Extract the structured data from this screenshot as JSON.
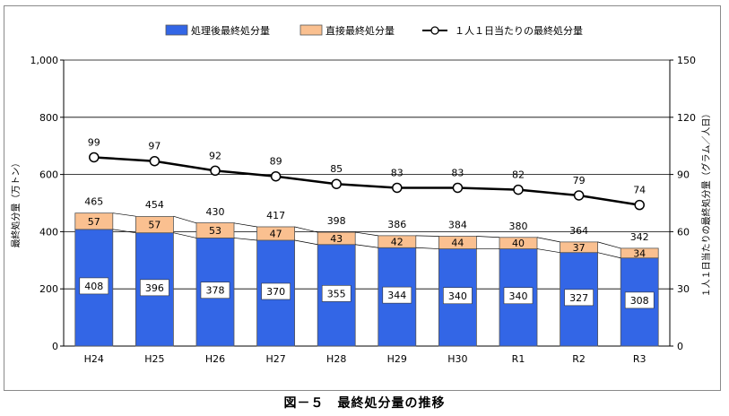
{
  "caption": "図－５　最終処分量の推移",
  "chart_data": {
    "type": "bar",
    "stacked": true,
    "categories": [
      "H24",
      "H25",
      "H26",
      "H27",
      "H28",
      "H29",
      "H30",
      "R1",
      "R2",
      "R3"
    ],
    "series": [
      {
        "name": "処理後最終処分量",
        "type": "bar",
        "axis": "left",
        "color": "#3366e6",
        "values": [
          408,
          396,
          378,
          370,
          355,
          344,
          340,
          340,
          327,
          308
        ]
      },
      {
        "name": "直接最終処分量",
        "type": "bar",
        "axis": "left",
        "color": "#fac090",
        "values": [
          57,
          57,
          53,
          47,
          43,
          42,
          44,
          40,
          37,
          34
        ]
      },
      {
        "name": "１人１日当たりの最終処分量",
        "type": "line",
        "axis": "right",
        "color": "#000000",
        "values": [
          99,
          97,
          92,
          89,
          85,
          83,
          83,
          82,
          79,
          74
        ]
      }
    ],
    "totals": [
      465,
      454,
      430,
      417,
      398,
      386,
      384,
      380,
      364,
      342
    ],
    "ylabel_left": "最終処分量（万トン）",
    "ylabel_right": "１人１日当たりの最終処分量（グラム／人日）",
    "ylim_left": [
      0,
      1000
    ],
    "ylim_right": [
      0,
      150
    ],
    "yticks_left": [
      "0",
      "200",
      "400",
      "600",
      "800",
      "1,000"
    ],
    "yticks_right": [
      "0",
      "30",
      "60",
      "90",
      "120",
      "150"
    ],
    "grid": true,
    "legend_position": "top"
  }
}
